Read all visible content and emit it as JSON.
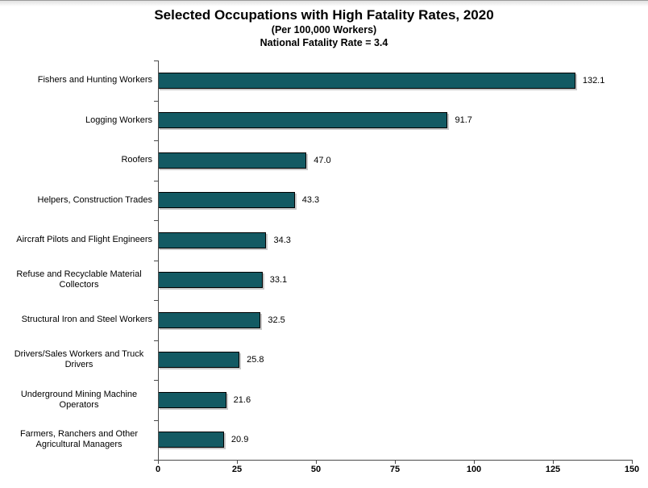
{
  "header": {
    "title": "Selected Occupations with High Fatality Rates, 2020",
    "subtitle": "(Per 100,000 Workers)",
    "note": "National Fatality Rate = 3.4"
  },
  "chart_data": {
    "type": "bar",
    "orientation": "horizontal",
    "title": "Selected Occupations with High Fatality Rates, 2020",
    "subtitle": "(Per 100,000 Workers)",
    "annotation": "National Fatality Rate = 3.4",
    "categories": [
      "Fishers and Hunting Workers",
      "Logging Workers",
      "Roofers",
      "Helpers, Construction Trades",
      "Aircraft Pilots and Flight Engineers",
      "Refuse and Recyclable Material Collectors",
      "Structural Iron and Steel Workers",
      "Drivers/Sales Workers and Truck Drivers",
      "Underground Mining Machine Operators",
      "Farmers, Ranchers and Other Agricultural Managers"
    ],
    "values": [
      132.1,
      91.7,
      47.0,
      43.3,
      34.3,
      33.1,
      32.5,
      25.8,
      21.6,
      20.9
    ],
    "value_labels": [
      "132.1",
      "91.7",
      "47.0",
      "43.3",
      "34.3",
      "33.1",
      "32.5",
      "25.8",
      "21.6",
      "20.9"
    ],
    "xlabel": "",
    "ylabel": "",
    "xlim": [
      0,
      150
    ],
    "xticks": [
      0,
      25,
      50,
      75,
      100,
      125,
      150
    ],
    "xtick_labels": [
      "0",
      "25",
      "50",
      "75",
      "100",
      "125",
      "150"
    ],
    "grid": false,
    "legend": false,
    "bar_color": "#135A63",
    "bar_border_color": "#000000",
    "axis_color": "#4a4a4a"
  }
}
